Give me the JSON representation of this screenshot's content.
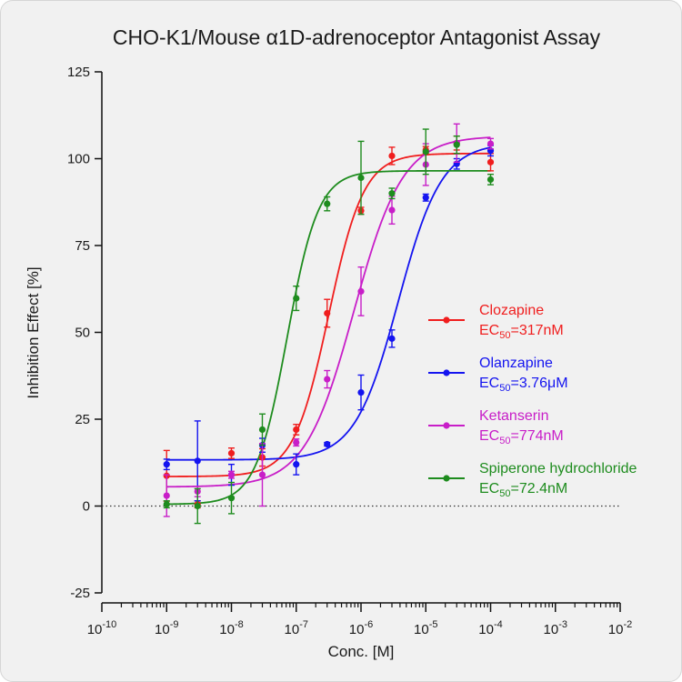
{
  "chart_data": {
    "type": "scatter",
    "title": "CHO-K1/Mouse α1D-adrenoceptor Antagonist Assay",
    "xlabel": "Conc. [M]",
    "ylabel": "Inhibition Effect [%]",
    "xscale": "log",
    "xlim": [
      1e-10,
      0.01
    ],
    "ylim": [
      -25,
      125
    ],
    "x_ticks": [
      {
        "exp": "-10",
        "value": 1e-10
      },
      {
        "exp": "-9",
        "value": 1e-09
      },
      {
        "exp": "-8",
        "value": 1e-08
      },
      {
        "exp": "-7",
        "value": 1e-07
      },
      {
        "exp": "-6",
        "value": 1e-06
      },
      {
        "exp": "-5",
        "value": 1e-05
      },
      {
        "exp": "-4",
        "value": 0.0001
      },
      {
        "exp": "-3",
        "value": 0.001
      },
      {
        "exp": "-2",
        "value": 0.01
      }
    ],
    "y_ticks": [
      -25,
      0,
      25,
      50,
      75,
      100,
      125
    ],
    "reference_line_y": 0,
    "legend_position": "right",
    "series": [
      {
        "name": "Clozapine",
        "ec50_label": "=317nM",
        "color": "#f01e1e",
        "ec50": 3.17e-07,
        "bottom": 8.5,
        "top": 101.5,
        "hill": 1.6,
        "points": [
          {
            "x": 1e-09,
            "y": 8.7,
            "err": 7.3
          },
          {
            "x": 3e-09,
            "y": 0.5,
            "err": 1.0
          },
          {
            "x": 1e-08,
            "y": 15.2,
            "err": 1.5
          },
          {
            "x": 3e-08,
            "y": 14.0,
            "err": 2.5
          },
          {
            "x": 1e-07,
            "y": 22.0,
            "err": 1.5
          },
          {
            "x": 3e-07,
            "y": 55.5,
            "err": 4.0
          },
          {
            "x": 1e-06,
            "y": 85.0,
            "err": 1.0
          },
          {
            "x": 3e-06,
            "y": 100.8,
            "err": 2.5
          },
          {
            "x": 1e-05,
            "y": 102.5,
            "err": 1.0
          },
          {
            "x": 3e-05,
            "y": 104.5,
            "err": 2.0
          },
          {
            "x": 0.0001,
            "y": 99.0,
            "err": 2.5
          }
        ]
      },
      {
        "name": "Olanzapine",
        "ec50_label": "=3.76μM",
        "color": "#1414f0",
        "ec50": 3.76e-06,
        "bottom": 13.3,
        "top": 104.5,
        "hill": 1.3,
        "points": [
          {
            "x": 1e-09,
            "y": 12.0,
            "err": 1.5
          },
          {
            "x": 3e-09,
            "y": 13.0,
            "err": 11.5
          },
          {
            "x": 1e-08,
            "y": 9.0,
            "err": 3.0
          },
          {
            "x": 3e-08,
            "y": 17.5,
            "err": 2.0
          },
          {
            "x": 1e-07,
            "y": 12.0,
            "err": 3.0
          },
          {
            "x": 3e-07,
            "y": 17.8,
            "err": 0.5
          },
          {
            "x": 1e-06,
            "y": 32.7,
            "err": 5.0
          },
          {
            "x": 3e-06,
            "y": 48.2,
            "err": 2.5
          },
          {
            "x": 1e-05,
            "y": 88.8,
            "err": 1.0
          },
          {
            "x": 3e-05,
            "y": 98.5,
            "err": 1.5
          },
          {
            "x": 0.0001,
            "y": 102.3,
            "err": 1.5
          }
        ]
      },
      {
        "name": "Ketanserin",
        "ec50_label": "=774nM",
        "color": "#c81ec8",
        "ec50": 7.74e-07,
        "bottom": 5.5,
        "top": 106.5,
        "hill": 1.15,
        "points": [
          {
            "x": 1e-09,
            "y": 3.0,
            "err": 6.0
          },
          {
            "x": 3e-09,
            "y": 4.2,
            "err": 1.5
          },
          {
            "x": 1e-08,
            "y": 9.0,
            "err": 1.0
          },
          {
            "x": 3e-08,
            "y": 9.0,
            "err": 9.0
          },
          {
            "x": 1e-07,
            "y": 18.3,
            "err": 1.0
          },
          {
            "x": 3e-07,
            "y": 36.5,
            "err": 2.5
          },
          {
            "x": 1e-06,
            "y": 61.8,
            "err": 7.0
          },
          {
            "x": 3e-06,
            "y": 85.2,
            "err": 4.0
          },
          {
            "x": 1e-05,
            "y": 98.3,
            "err": 6.0
          },
          {
            "x": 3e-05,
            "y": 104.5,
            "err": 5.5
          },
          {
            "x": 0.0001,
            "y": 104.3,
            "err": 1.5
          }
        ]
      },
      {
        "name": "Spiperone hydrochloride",
        "ec50_label": "=72.4nM",
        "color": "#1e8c1e",
        "ec50": 7.24e-08,
        "bottom": 0.5,
        "top": 96.5,
        "hill": 1.8,
        "points": [
          {
            "x": 1e-09,
            "y": 0.5,
            "err": 1.0
          },
          {
            "x": 3e-09,
            "y": 0.0,
            "err": 5.0
          },
          {
            "x": 1e-08,
            "y": 2.3,
            "err": 4.5
          },
          {
            "x": 3e-08,
            "y": 22.0,
            "err": 4.5
          },
          {
            "x": 1e-07,
            "y": 59.8,
            "err": 3.5
          },
          {
            "x": 3e-07,
            "y": 87.0,
            "err": 2.0
          },
          {
            "x": 1e-06,
            "y": 94.5,
            "err": 10.5
          },
          {
            "x": 3e-06,
            "y": 90.0,
            "err": 1.5
          },
          {
            "x": 1e-05,
            "y": 102.0,
            "err": 6.5
          },
          {
            "x": 3e-05,
            "y": 104.0,
            "err": 2.5
          },
          {
            "x": 0.0001,
            "y": 94.0,
            "err": 1.5
          }
        ]
      }
    ]
  }
}
